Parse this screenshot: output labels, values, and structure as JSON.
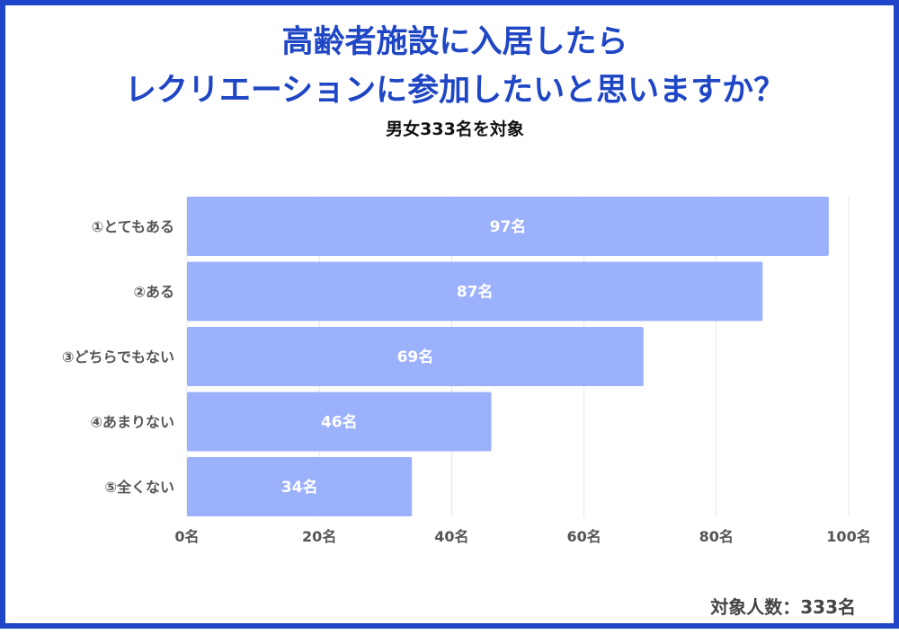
{
  "title_line1": "高齢者施設に入居したら",
  "title_line2": "レクリエーションに参加したいと思いますか？",
  "subtitle": "男女333名を対象",
  "footer": "対象人数：333名",
  "colors": {
    "border": "#2045c8",
    "title": "#1f46c4",
    "bar": "#9cb1fc",
    "grid": "#e6e6e6",
    "bar_label": "#ffffff",
    "axis_label": "#555555"
  },
  "chart_data": {
    "type": "bar",
    "orientation": "horizontal",
    "categories": [
      "①とてもある",
      "②ある",
      "③どちらでもない",
      "④あまりない",
      "⑤全くない"
    ],
    "values": [
      97,
      87,
      69,
      46,
      34
    ],
    "value_labels": [
      "97名",
      "87名",
      "69名",
      "46名",
      "34名"
    ],
    "xlim": [
      0,
      100
    ],
    "xticks": [
      0,
      20,
      40,
      60,
      80,
      100
    ],
    "xtick_labels": [
      "0名",
      "20名",
      "40名",
      "60名",
      "80名",
      "100名"
    ],
    "title": "高齢者施設に入居したら レクリエーションに参加したいと思いますか？",
    "xlabel": "",
    "ylabel": "",
    "grid": true,
    "legend": "none"
  }
}
